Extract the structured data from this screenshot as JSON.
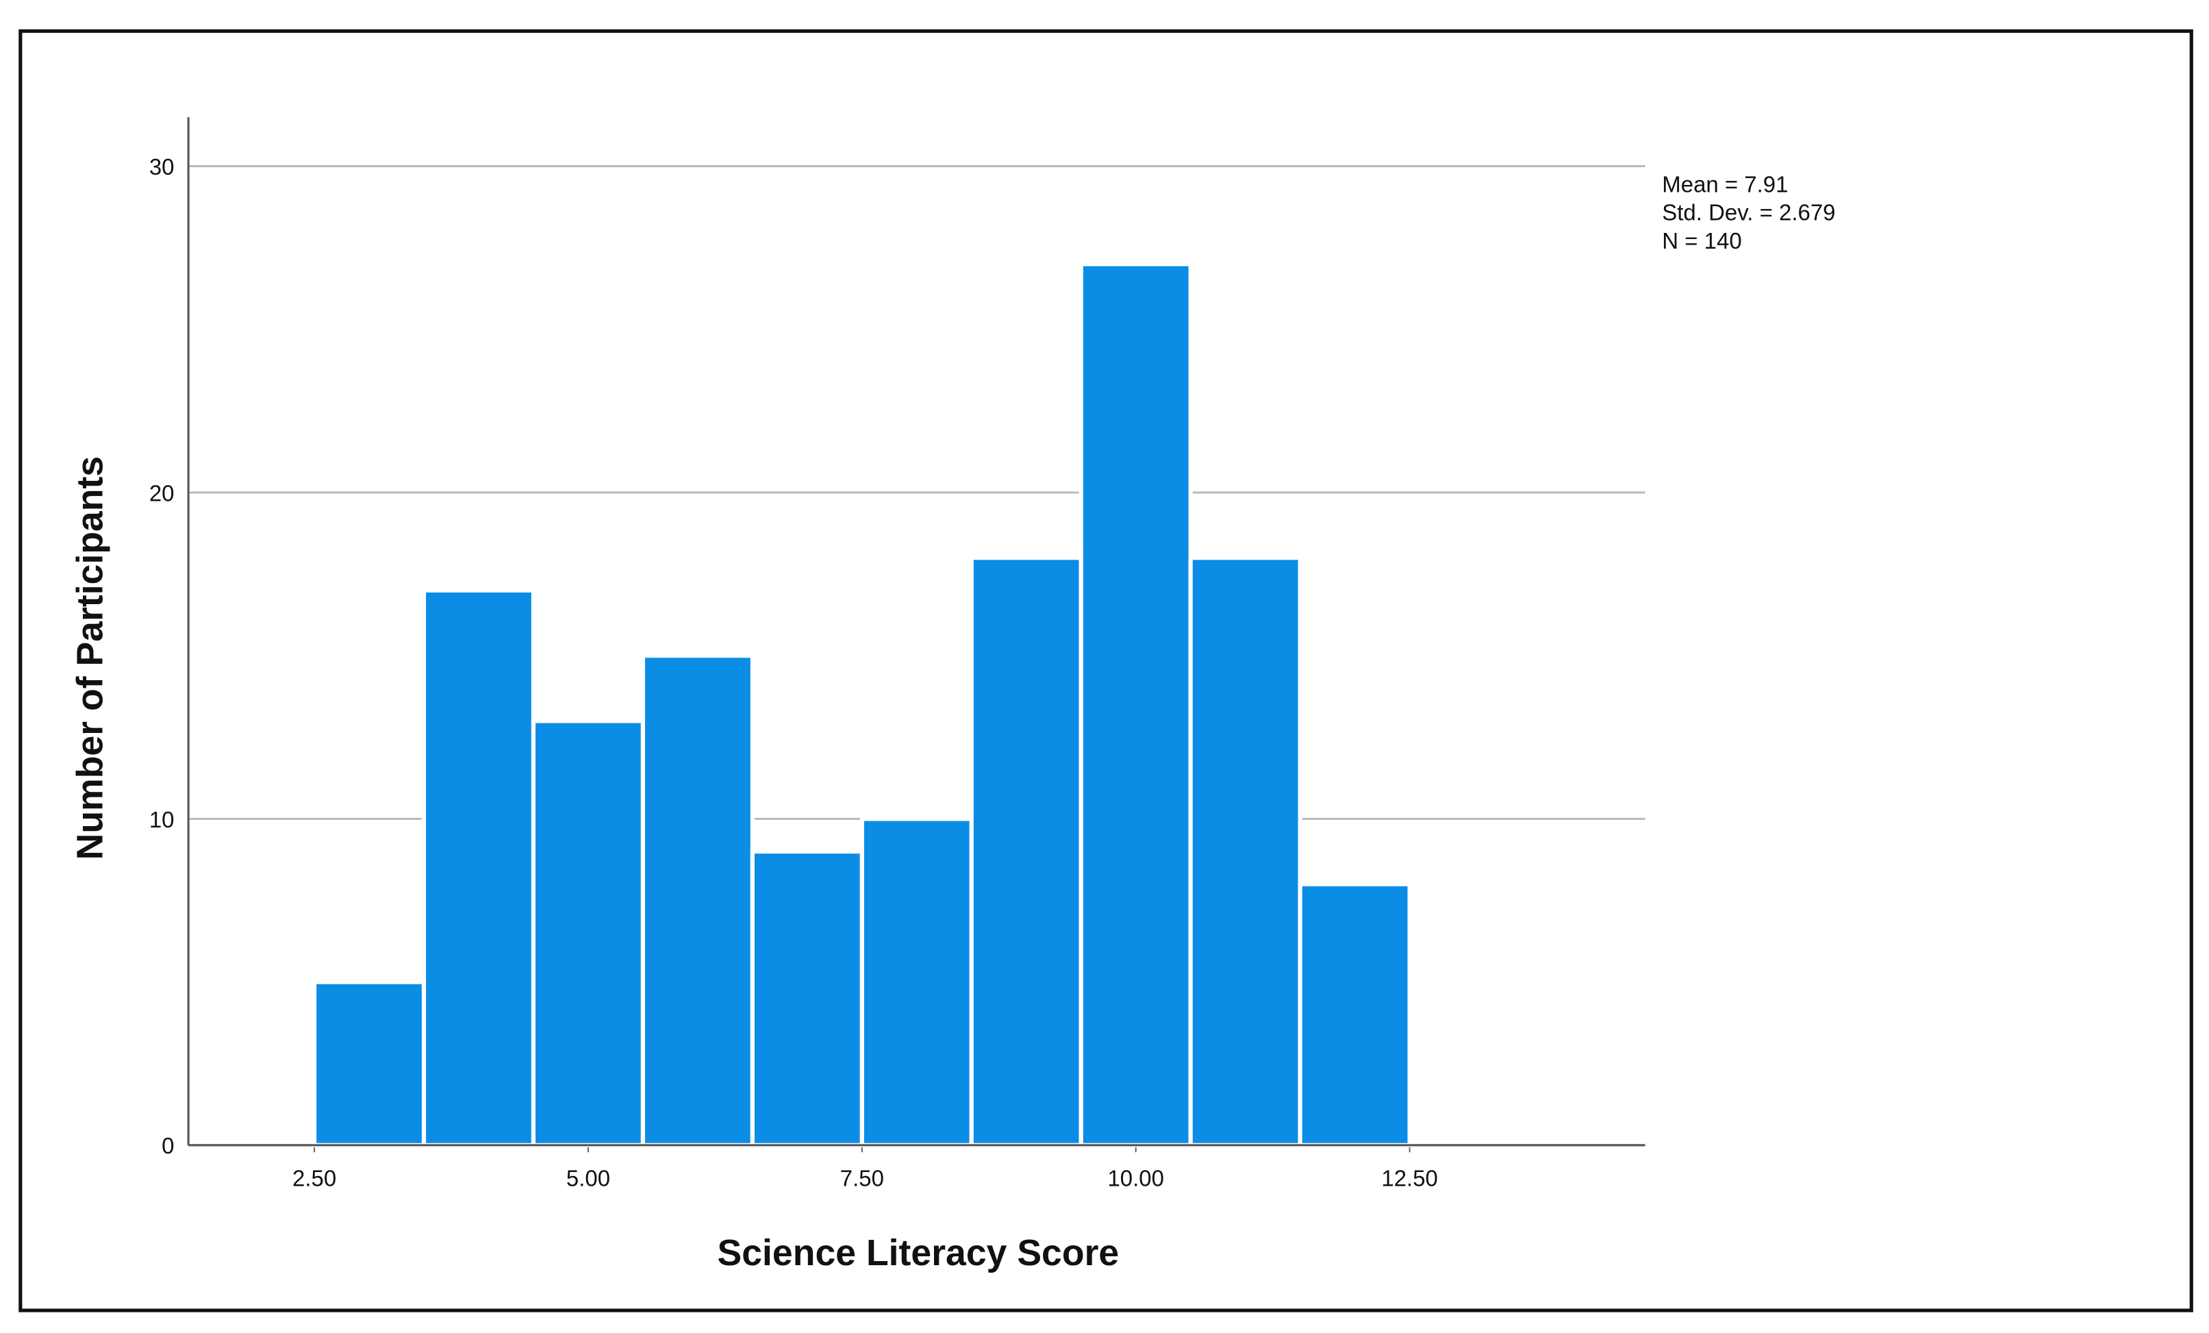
{
  "chart_data": {
    "type": "histogram",
    "xlabel": "Science Literacy Score",
    "ylabel": "Number of Participants",
    "bins": [
      2.5,
      3.5,
      4.5,
      5.5,
      6.5,
      7.5,
      8.5,
      9.5,
      10.5,
      11.5,
      12.5
    ],
    "values": [
      5,
      17,
      13,
      15,
      9,
      10,
      18,
      27,
      18,
      8
    ],
    "color": "#0b8de6",
    "xlim": [
      1.35,
      14.65
    ],
    "xticks": [
      {
        "value": 2.5,
        "label": "2.50"
      },
      {
        "value": 5,
        "label": "5.00"
      },
      {
        "value": 7.5,
        "label": "7.50"
      },
      {
        "value": 10,
        "label": "10.00"
      },
      {
        "value": 12.5,
        "label": "12.50"
      }
    ],
    "ylim": [
      0,
      31.5
    ],
    "yticks": [
      0,
      10,
      20,
      30
    ],
    "grid": true,
    "annotations": [
      "Mean = 7.91",
      "Std. Dev. = 2.679",
      "N = 140"
    ]
  }
}
